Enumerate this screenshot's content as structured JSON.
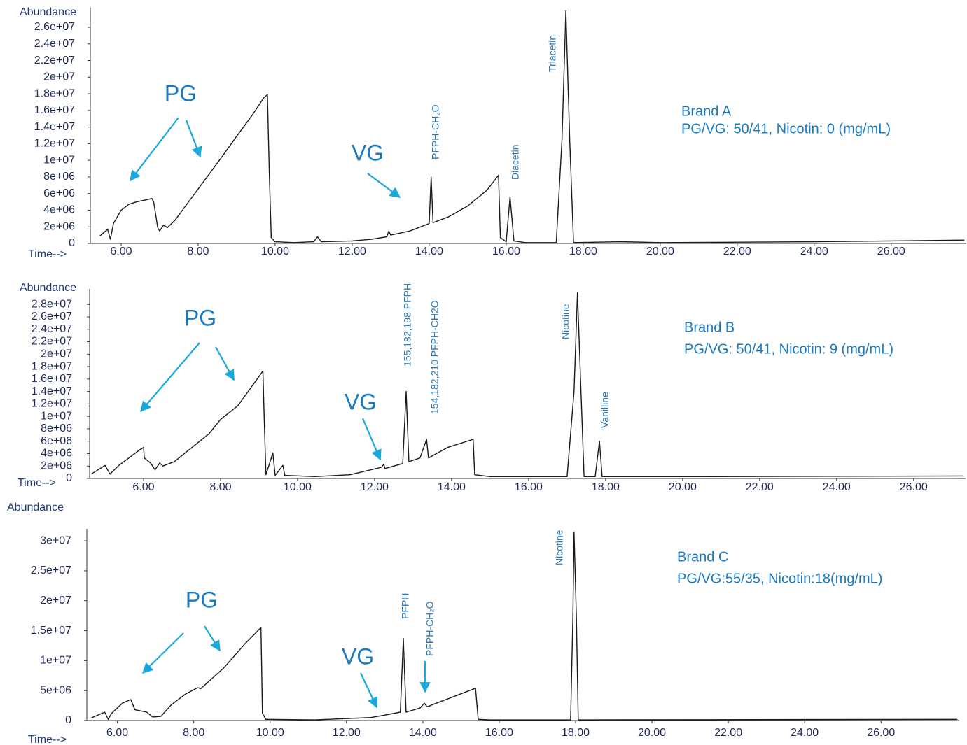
{
  "chart_data": [
    {
      "type": "line",
      "y_label": "Abundance",
      "x_label": "Time-->",
      "color": "#1a1a1a",
      "annotations": [
        "PG",
        "VG"
      ],
      "peak_labels": [
        "PFPH-CH₂O",
        "Diacetin",
        "Triacetin"
      ],
      "description": [
        "Brand A",
        "PG/VG: 50/41, Nicotin: 0 (mg/mL)"
      ],
      "xlim": [
        5.2,
        27.95
      ],
      "ylim": [
        0,
        28400000
      ],
      "xticks": [
        {
          "value": 6,
          "label": "6.00"
        },
        {
          "value": 8,
          "label": "8.00"
        },
        {
          "value": 10,
          "label": "10.00"
        },
        {
          "value": 12,
          "label": "12.00"
        },
        {
          "value": 14,
          "label": "14.00"
        },
        {
          "value": 16,
          "label": "16.00"
        },
        {
          "value": 18,
          "label": "18.00"
        },
        {
          "value": 20,
          "label": "20.00"
        },
        {
          "value": 22,
          "label": "22.00"
        },
        {
          "value": 24,
          "label": "24.00"
        },
        {
          "value": 26,
          "label": "26.00"
        }
      ],
      "yticks": [
        0,
        {
          "value": 2000000,
          "label": "2e+06"
        },
        {
          "value": 4000000,
          "label": "4e+06"
        },
        {
          "value": 6000000,
          "label": "6e+06"
        },
        {
          "value": 8000000,
          "label": "8e+06"
        },
        {
          "value": 10000000,
          "label": "1e+07"
        },
        {
          "value": 12000000,
          "label": "1.2e+07"
        },
        {
          "value": 14000000,
          "label": "1.4e+07"
        },
        {
          "value": 16000000,
          "label": "1.6e+07"
        },
        {
          "value": 18000000,
          "label": "1.8e+07"
        },
        {
          "value": 20000000,
          "label": "2e+07"
        },
        {
          "value": 22000000,
          "label": "2.2e+07"
        },
        {
          "value": 24000000,
          "label": "2.4e+07"
        },
        {
          "value": 26000000,
          "label": "2.6e+07"
        }
      ],
      "x": [
        5.45,
        5.65,
        5.72,
        5.8,
        6.0,
        6.2,
        6.4,
        6.8,
        6.85,
        6.95,
        7.0,
        7.1,
        7.2,
        7.4,
        7.8,
        8.2,
        8.6,
        9.0,
        9.4,
        9.7,
        9.8,
        9.85,
        9.9,
        10.0,
        10.5,
        11.0,
        11.1,
        11.2,
        12.0,
        12.5,
        12.9,
        12.95,
        13.0,
        13.5,
        14.0,
        14.05,
        14.1,
        14.5,
        15.0,
        15.5,
        15.8,
        15.85,
        16.0,
        16.1,
        16.2,
        16.5,
        17.3,
        17.45,
        17.55,
        17.65,
        17.75,
        19.0,
        20.0,
        24.0,
        26.0,
        27.9
      ],
      "values": [
        900000,
        1700000,
        500000,
        2400000,
        4000000,
        4700000,
        5000000,
        5400000,
        4900000,
        1900000,
        1500000,
        2200000,
        1900000,
        2800000,
        5300000,
        7800000,
        10300000,
        12900000,
        15400000,
        17500000,
        17900000,
        8200000,
        700000,
        200000,
        100000,
        200000,
        800000,
        200000,
        300000,
        500000,
        800000,
        1500000,
        1000000,
        1500000,
        2400000,
        8000000,
        2500000,
        3200000,
        4500000,
        6400000,
        8200000,
        700000,
        200000,
        5600000,
        300000,
        100000,
        100000,
        12500000,
        28000000,
        12500000,
        100000,
        200000,
        100000,
        200000,
        300000,
        400000
      ]
    },
    {
      "type": "line",
      "y_label": "Abundance",
      "x_label": "Time-->",
      "color": "#1a1a1a",
      "annotations": [
        "PG",
        "VG"
      ],
      "peak_labels": [
        "155,182,198 PFPH",
        "154,182,210 PFPH-CH2O",
        "Nicotine",
        "Vanilline"
      ],
      "description": [
        "Brand B",
        "PG/VG: 50/41, Nicotin: 9 (mg/mL)"
      ],
      "xlim": [
        4.6,
        27.35
      ],
      "ylim": [
        0,
        30500000
      ],
      "xticks": [
        {
          "value": 6,
          "label": "6.00"
        },
        {
          "value": 8,
          "label": "8.00"
        },
        {
          "value": 10,
          "label": "10.00"
        },
        {
          "value": 12,
          "label": "12.00"
        },
        {
          "value": 14,
          "label": "14.00"
        },
        {
          "value": 16,
          "label": "16.00"
        },
        {
          "value": 18,
          "label": "18.00"
        },
        {
          "value": 20,
          "label": "20.00"
        },
        {
          "value": 22,
          "label": "22.00"
        },
        {
          "value": 24,
          "label": "24.00"
        },
        {
          "value": 26,
          "label": "26.00"
        }
      ],
      "yticks": [
        0,
        {
          "value": 2000000,
          "label": "2e+06"
        },
        {
          "value": 4000000,
          "label": "4e+06"
        },
        {
          "value": 6000000,
          "label": "6e+06"
        },
        {
          "value": 8000000,
          "label": "8e+06"
        },
        {
          "value": 10000000,
          "label": "1e+07"
        },
        {
          "value": 12000000,
          "label": "1.2e+07"
        },
        {
          "value": 14000000,
          "label": "1.4e+07"
        },
        {
          "value": 16000000,
          "label": "1.6e+07"
        },
        {
          "value": 18000000,
          "label": "1.8e+07"
        },
        {
          "value": 20000000,
          "label": "2e+07"
        },
        {
          "value": 22000000,
          "label": "2.2e+07"
        },
        {
          "value": 24000000,
          "label": "2.4e+07"
        },
        {
          "value": 26000000,
          "label": "2.6e+07"
        },
        {
          "value": 28000000,
          "label": "2.8e+07"
        }
      ],
      "x": [
        4.64,
        5.0,
        5.13,
        5.36,
        5.9,
        6.0,
        6.02,
        6.18,
        6.3,
        6.42,
        6.5,
        6.8,
        7.7,
        8.0,
        8.45,
        9.1,
        9.13,
        9.18,
        9.36,
        9.42,
        9.62,
        9.67,
        10.45,
        11.36,
        12.18,
        12.24,
        12.27,
        12.73,
        12.82,
        12.89,
        13.18,
        13.35,
        13.4,
        13.9,
        14.56,
        14.6,
        15.0,
        17.0,
        17.18,
        17.27,
        17.36,
        17.44,
        17.73,
        17.84,
        17.91,
        20.45,
        27.3
      ],
      "values": [
        700000,
        2100000,
        700000,
        2100000,
        4600000,
        5000000,
        3300000,
        2500000,
        1400000,
        2500000,
        2000000,
        2700000,
        7200000,
        9500000,
        11700000,
        17300000,
        10600000,
        600000,
        4100000,
        500000,
        2100000,
        500000,
        300000,
        600000,
        1800000,
        2300000,
        1600000,
        2400000,
        14000000,
        2700000,
        3300000,
        6300000,
        3300000,
        5000000,
        6300000,
        600000,
        300000,
        300000,
        14000000,
        29900000,
        14000000,
        300000,
        300000,
        6000000,
        300000,
        300000,
        400000
      ]
    },
    {
      "type": "line",
      "y_label": "Abundance",
      "x_label": "Time-->",
      "color": "#1a1a1a",
      "annotations": [
        "PG",
        "VG"
      ],
      "peak_labels": [
        "PFPH",
        "PFPH-CH₂O",
        "Nicotine"
      ],
      "description": [
        "Brand C",
        "PG/VG:55/35, Nicotin:18(mg/mL)"
      ],
      "xlim": [
        5.2,
        28.05
      ],
      "ylim": [
        0,
        32000000
      ],
      "xticks": [
        {
          "value": 6,
          "label": "6.00"
        },
        {
          "value": 8,
          "label": "8.00"
        },
        {
          "value": 10,
          "label": "10.00"
        },
        {
          "value": 12,
          "label": "12.00"
        },
        {
          "value": 14,
          "label": "14.00"
        },
        {
          "value": 16,
          "label": "16.00"
        },
        {
          "value": 18,
          "label": "18.00"
        },
        {
          "value": 20,
          "label": "20.00"
        },
        {
          "value": 22,
          "label": "22.00"
        },
        {
          "value": 24,
          "label": "24.00"
        },
        {
          "value": 26,
          "label": "26.00"
        }
      ],
      "yticks": [
        0,
        {
          "value": 5000000,
          "label": "5e+06"
        },
        {
          "value": 10000000,
          "label": "1e+07"
        },
        {
          "value": 15000000,
          "label": "1.5e+07"
        },
        {
          "value": 20000000,
          "label": "2e+07"
        },
        {
          "value": 25000000,
          "label": "2.5e+07"
        },
        {
          "value": 30000000,
          "label": "3e+07"
        }
      ],
      "x": [
        5.3,
        5.67,
        5.76,
        5.85,
        6.13,
        6.35,
        6.46,
        6.77,
        6.92,
        7.14,
        7.41,
        7.78,
        8.11,
        8.18,
        8.79,
        9.34,
        9.76,
        9.8,
        9.89,
        11.17,
        12.64,
        12.92,
        13.41,
        13.49,
        13.56,
        13.93,
        14.04,
        14.11,
        15.38,
        15.45,
        15.76,
        17.87,
        17.93,
        17.96,
        18.02,
        18.07,
        28.0
      ],
      "values": [
        400000,
        1400000,
        200000,
        1200000,
        2900000,
        3500000,
        1800000,
        1400000,
        600000,
        700000,
        2600000,
        4400000,
        5500000,
        5300000,
        8800000,
        12800000,
        15500000,
        1200000,
        200000,
        100000,
        500000,
        800000,
        1400000,
        13700000,
        1400000,
        2100000,
        2900000,
        2300000,
        5400000,
        200000,
        100000,
        100000,
        17500000,
        31500000,
        17500000,
        100000,
        200000
      ]
    }
  ]
}
